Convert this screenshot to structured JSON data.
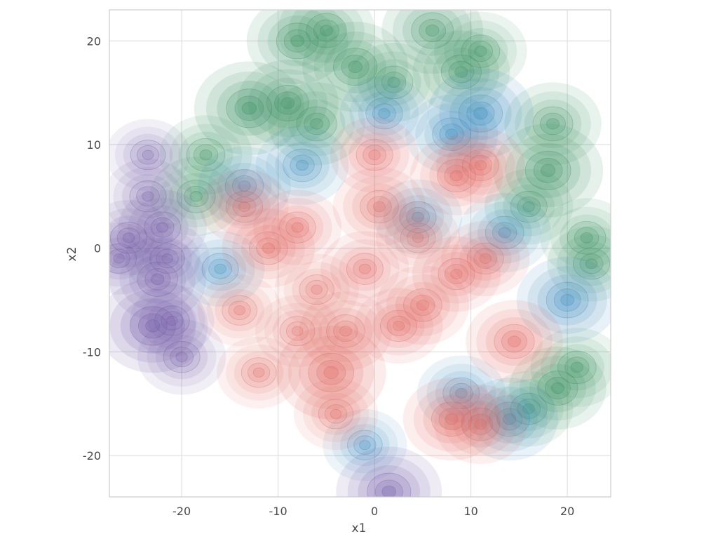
{
  "chart_data": {
    "type": "kde-contour",
    "title": "",
    "xlabel": "x1",
    "ylabel": "x2",
    "xlim": [
      -27.5,
      24.5
    ],
    "ylim": [
      -24,
      23
    ],
    "xticks": [
      -20,
      -10,
      0,
      10,
      20
    ],
    "yticks": [
      -20,
      -10,
      0,
      10,
      20
    ],
    "xtick_labels": [
      "-20",
      "-10",
      "0",
      "10",
      "20"
    ],
    "ytick_labels": [
      "-20",
      "-10",
      "0",
      "10",
      "20"
    ],
    "grid": true,
    "legend": "none",
    "series": [
      {
        "colormap": "Greens",
        "color": "#2e8b57",
        "centers": [
          {
            "x": -13,
            "y": 13.5,
            "w": 1.0
          },
          {
            "x": -9,
            "y": 14,
            "w": 0.8
          },
          {
            "x": -6,
            "y": 12,
            "w": 0.7
          },
          {
            "x": -8,
            "y": 20,
            "w": 0.8
          },
          {
            "x": -2,
            "y": 17.5,
            "w": 0.9
          },
          {
            "x": -5,
            "y": 21,
            "w": 0.7
          },
          {
            "x": 2,
            "y": 16,
            "w": 0.6
          },
          {
            "x": 6,
            "y": 21,
            "w": 0.8
          },
          {
            "x": 9,
            "y": 17,
            "w": 0.7
          },
          {
            "x": 11,
            "y": 19,
            "w": 0.6
          },
          {
            "x": -17.5,
            "y": 9,
            "w": 0.6
          },
          {
            "x": -18.5,
            "y": 5,
            "w": 0.6
          },
          {
            "x": 18,
            "y": 7.5,
            "w": 1.0
          },
          {
            "x": 18.5,
            "y": 12,
            "w": 0.7
          },
          {
            "x": 16,
            "y": 4,
            "w": 0.5
          },
          {
            "x": 22,
            "y": 1,
            "w": 0.6
          },
          {
            "x": 22.5,
            "y": -1.5,
            "w": 0.5
          },
          {
            "x": 19,
            "y": -13.5,
            "w": 0.7
          },
          {
            "x": 21,
            "y": -11.5,
            "w": 0.6
          },
          {
            "x": 16,
            "y": -15.5,
            "w": 0.5
          }
        ]
      },
      {
        "colormap": "Blues",
        "color": "#2b83ba",
        "centers": [
          {
            "x": 11,
            "y": 13,
            "w": 0.9
          },
          {
            "x": 8,
            "y": 11,
            "w": 0.6
          },
          {
            "x": -7.5,
            "y": 8,
            "w": 0.6
          },
          {
            "x": -13.5,
            "y": 6,
            "w": 0.6
          },
          {
            "x": 13.5,
            "y": 1.5,
            "w": 0.6
          },
          {
            "x": 20,
            "y": -5,
            "w": 0.8
          },
          {
            "x": 14,
            "y": -16.5,
            "w": 0.7
          },
          {
            "x": -16,
            "y": -2,
            "w": 0.5
          },
          {
            "x": 1,
            "y": 13,
            "w": 0.5
          },
          {
            "x": 4.5,
            "y": 3,
            "w": 0.5
          },
          {
            "x": 9,
            "y": -14,
            "w": 0.5
          },
          {
            "x": -1,
            "y": -19,
            "w": 0.4
          }
        ]
      },
      {
        "colormap": "Reds",
        "color": "#e05a52",
        "centers": [
          {
            "x": -4.5,
            "y": -12,
            "w": 1.0
          },
          {
            "x": -3,
            "y": -8,
            "w": 0.6
          },
          {
            "x": -11,
            "y": 0,
            "w": 0.6
          },
          {
            "x": -13.5,
            "y": 4,
            "w": 0.5
          },
          {
            "x": -8,
            "y": 2,
            "w": 0.5
          },
          {
            "x": 0.5,
            "y": 4,
            "w": 0.6
          },
          {
            "x": 0,
            "y": 9,
            "w": 0.5
          },
          {
            "x": 8.5,
            "y": 7,
            "w": 0.6
          },
          {
            "x": 11,
            "y": 8,
            "w": 0.5
          },
          {
            "x": 5,
            "y": -5.5,
            "w": 0.6
          },
          {
            "x": 2.5,
            "y": -7.5,
            "w": 0.5
          },
          {
            "x": 14.5,
            "y": -9,
            "w": 0.7
          },
          {
            "x": 8,
            "y": -16.5,
            "w": 0.7
          },
          {
            "x": 11,
            "y": -17,
            "w": 0.6
          },
          {
            "x": -1,
            "y": -2,
            "w": 0.5
          },
          {
            "x": 8.5,
            "y": -2.5,
            "w": 0.5
          },
          {
            "x": 11.5,
            "y": -1,
            "w": 0.5
          },
          {
            "x": -12,
            "y": -12,
            "w": 0.4
          },
          {
            "x": -8,
            "y": -8,
            "w": 0.4
          },
          {
            "x": -14,
            "y": -6,
            "w": 0.4
          },
          {
            "x": -6,
            "y": -4,
            "w": 0.4
          },
          {
            "x": -4,
            "y": -16,
            "w": 0.4
          },
          {
            "x": 4.5,
            "y": 1,
            "w": 0.4
          }
        ]
      },
      {
        "colormap": "Purples",
        "color": "#6a51a3",
        "centers": [
          {
            "x": -23,
            "y": -7.5,
            "w": 1.0
          },
          {
            "x": -22.5,
            "y": -3,
            "w": 0.7
          },
          {
            "x": -20,
            "y": -10.5,
            "w": 0.5
          },
          {
            "x": -25.5,
            "y": 1,
            "w": 0.5
          },
          {
            "x": -23.5,
            "y": 5,
            "w": 0.5
          },
          {
            "x": -22,
            "y": 2,
            "w": 0.5
          },
          {
            "x": -21.5,
            "y": -1,
            "w": 0.4
          },
          {
            "x": -23.5,
            "y": 9,
            "w": 0.4
          },
          {
            "x": -26.5,
            "y": -1,
            "w": 0.4
          },
          {
            "x": -21,
            "y": -7,
            "w": 0.4
          },
          {
            "x": 1.5,
            "y": -23.5,
            "w": 0.9
          }
        ]
      }
    ]
  }
}
